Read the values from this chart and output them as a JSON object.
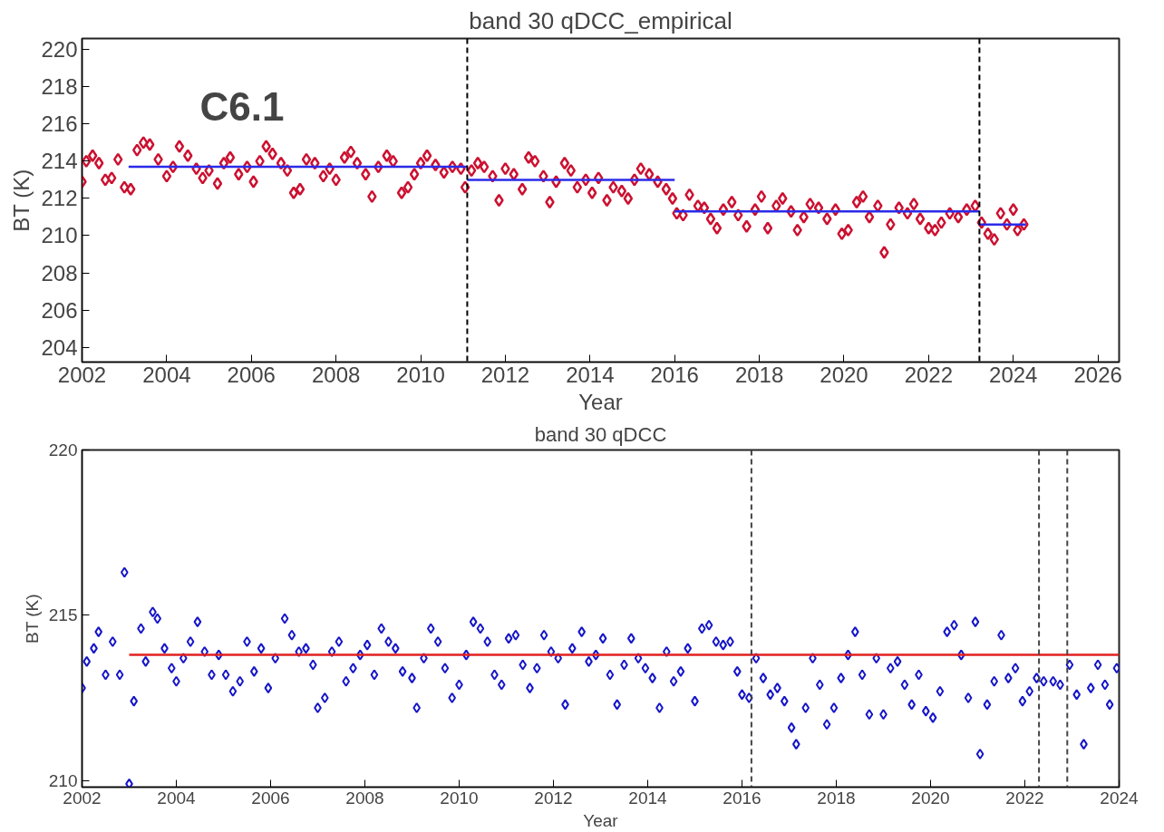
{
  "chart_data": [
    {
      "type": "scatter",
      "title": "band 30 qDCC_empirical",
      "xlabel": "Year",
      "ylabel": "BT (K)",
      "xlim": [
        2002,
        2026.5
      ],
      "ylim": [
        203.2,
        220.6
      ],
      "xticks": [
        2002,
        2004,
        2006,
        2008,
        2010,
        2012,
        2014,
        2016,
        2018,
        2020,
        2022,
        2024,
        2026
      ],
      "yticks": [
        204,
        206,
        208,
        210,
        212,
        214,
        216,
        218,
        220
      ],
      "grid": false,
      "annotations": [
        "C6.1"
      ],
      "ref_lines": [
        {
          "axis": "x",
          "value": 2011.1,
          "color": "#000000",
          "line_style": "dashed"
        },
        {
          "axis": "x",
          "value": 2023.2,
          "color": "#000000",
          "line_style": "dashed"
        }
      ],
      "series": [
        {
          "marker": "diamond",
          "color": "#cc1030",
          "x": [
            2002.0,
            2002.1,
            2002.25,
            2002.4,
            2002.55,
            2002.7,
            2002.85,
            2003.0,
            2003.15,
            2003.3,
            2003.45,
            2003.6,
            2003.8,
            2004.0,
            2004.15,
            2004.3,
            2004.5,
            2004.7,
            2004.85,
            2005.0,
            2005.2,
            2005.35,
            2005.5,
            2005.7,
            2005.9,
            2006.05,
            2006.2,
            2006.35,
            2006.5,
            2006.7,
            2006.85,
            2007.0,
            2007.15,
            2007.3,
            2007.5,
            2007.7,
            2007.85,
            2008.0,
            2008.2,
            2008.35,
            2008.5,
            2008.7,
            2008.85,
            2009.0,
            2009.2,
            2009.35,
            2009.55,
            2009.7,
            2009.85,
            2010.0,
            2010.15,
            2010.35,
            2010.55,
            2010.75,
            2010.95,
            2011.05,
            2011.2,
            2011.35,
            2011.5,
            2011.7,
            2011.85,
            2012.0,
            2012.2,
            2012.4,
            2012.55,
            2012.7,
            2012.9,
            2013.05,
            2013.2,
            2013.4,
            2013.55,
            2013.7,
            2013.9,
            2014.05,
            2014.2,
            2014.4,
            2014.55,
            2014.75,
            2014.9,
            2015.05,
            2015.2,
            2015.4,
            2015.6,
            2015.8,
            2015.95,
            2016.05,
            2016.2,
            2016.35,
            2016.55,
            2016.7,
            2016.85,
            2017.0,
            2017.15,
            2017.35,
            2017.5,
            2017.7,
            2017.9,
            2018.05,
            2018.2,
            2018.4,
            2018.55,
            2018.75,
            2018.9,
            2019.05,
            2019.2,
            2019.4,
            2019.6,
            2019.8,
            2019.95,
            2020.1,
            2020.3,
            2020.45,
            2020.6,
            2020.8,
            2020.95,
            2021.1,
            2021.3,
            2021.5,
            2021.65,
            2021.8,
            2022.0,
            2022.15,
            2022.3,
            2022.5,
            2022.7,
            2022.9,
            2023.1,
            2023.25,
            2023.4,
            2023.55,
            2023.7,
            2023.85,
            2024.0,
            2024.1,
            2024.25
          ],
          "values": [
            212.9,
            214.0,
            214.3,
            213.9,
            213.0,
            213.1,
            214.1,
            212.6,
            212.5,
            214.6,
            215.0,
            214.9,
            214.1,
            213.2,
            213.7,
            214.8,
            214.3,
            213.6,
            213.1,
            213.5,
            212.8,
            213.9,
            214.2,
            213.3,
            213.7,
            212.9,
            214.0,
            214.8,
            214.4,
            213.9,
            213.5,
            212.3,
            212.5,
            214.1,
            213.9,
            213.2,
            213.6,
            213.0,
            214.2,
            214.5,
            213.9,
            213.3,
            212.1,
            213.7,
            214.3,
            214.0,
            212.3,
            212.6,
            213.3,
            213.9,
            214.3,
            213.8,
            213.4,
            213.7,
            213.6,
            212.6,
            213.5,
            213.9,
            213.7,
            213.2,
            211.9,
            213.6,
            213.3,
            212.5,
            214.2,
            214.0,
            213.2,
            211.8,
            212.9,
            213.9,
            213.5,
            212.6,
            213.0,
            212.3,
            213.1,
            211.9,
            212.6,
            212.4,
            212.0,
            213.0,
            213.6,
            213.3,
            212.9,
            212.5,
            212.0,
            211.2,
            211.1,
            212.2,
            211.6,
            211.5,
            210.9,
            210.4,
            211.4,
            211.8,
            211.1,
            210.5,
            211.4,
            212.1,
            210.4,
            211.6,
            212.0,
            211.3,
            210.3,
            211.0,
            211.7,
            211.5,
            210.9,
            211.4,
            210.1,
            210.3,
            211.8,
            212.1,
            211.0,
            211.6,
            209.1,
            210.6,
            211.5,
            211.2,
            211.7,
            210.9,
            210.4,
            210.3,
            210.7,
            211.2,
            211.0,
            211.4,
            211.6,
            210.7,
            210.1,
            209.8,
            211.2,
            210.6,
            211.4,
            210.3,
            210.6
          ]
        },
        {
          "type": "line",
          "marker": "none",
          "color": "#2a2ae8",
          "x": [
            2003.1,
            2011.1
          ],
          "values": [
            213.7,
            213.7
          ]
        },
        {
          "type": "line",
          "marker": "none",
          "color": "#2a2ae8",
          "x": [
            2011.1,
            2016.0
          ],
          "values": [
            213.0,
            213.0
          ]
        },
        {
          "type": "line",
          "marker": "none",
          "color": "#2a2ae8",
          "x": [
            2016.0,
            2023.2
          ],
          "values": [
            211.3,
            211.3
          ]
        },
        {
          "type": "line",
          "marker": "none",
          "color": "#2a2ae8",
          "x": [
            2023.2,
            2024.3
          ],
          "values": [
            210.6,
            210.6
          ]
        }
      ]
    },
    {
      "type": "scatter",
      "title": "band 30 qDCC",
      "xlabel": "Year",
      "ylabel": "BT (K)",
      "xlim": [
        2002,
        2024
      ],
      "ylim": [
        209.8,
        220
      ],
      "xticks": [
        2002,
        2004,
        2006,
        2008,
        2010,
        2012,
        2014,
        2016,
        2018,
        2020,
        2022,
        2024
      ],
      "yticks": [
        210,
        215,
        220
      ],
      "grid": false,
      "ref_lines": [
        {
          "axis": "x",
          "value": 2016.2,
          "color": "#444444",
          "line_style": "dashed"
        },
        {
          "axis": "x",
          "value": 2022.3,
          "color": "#444444",
          "line_style": "dashed"
        },
        {
          "axis": "x",
          "value": 2022.9,
          "color": "#444444",
          "line_style": "dashed"
        }
      ],
      "series": [
        {
          "marker": "diamond",
          "color": "#1515c8",
          "x": [
            2002.0,
            2002.1,
            2002.25,
            2002.35,
            2002.5,
            2002.65,
            2002.8,
            2002.9,
            2003.0,
            2003.1,
            2003.25,
            2003.35,
            2003.5,
            2003.6,
            2003.75,
            2003.9,
            2004.0,
            2004.15,
            2004.3,
            2004.45,
            2004.6,
            2004.75,
            2004.9,
            2005.05,
            2005.2,
            2005.35,
            2005.5,
            2005.65,
            2005.8,
            2005.95,
            2006.1,
            2006.3,
            2006.45,
            2006.6,
            2006.75,
            2006.9,
            2007.0,
            2007.15,
            2007.3,
            2007.45,
            2007.6,
            2007.75,
            2007.9,
            2008.05,
            2008.2,
            2008.35,
            2008.5,
            2008.65,
            2008.8,
            2009.0,
            2009.1,
            2009.25,
            2009.4,
            2009.55,
            2009.7,
            2009.85,
            2010.0,
            2010.15,
            2010.3,
            2010.45,
            2010.6,
            2010.75,
            2010.9,
            2011.05,
            2011.2,
            2011.35,
            2011.5,
            2011.65,
            2011.8,
            2011.95,
            2012.1,
            2012.25,
            2012.4,
            2012.6,
            2012.75,
            2012.9,
            2013.05,
            2013.2,
            2013.35,
            2013.5,
            2013.65,
            2013.8,
            2013.95,
            2014.1,
            2014.25,
            2014.4,
            2014.55,
            2014.7,
            2014.85,
            2015.0,
            2015.15,
            2015.3,
            2015.45,
            2015.6,
            2015.75,
            2015.9,
            2016.0,
            2016.15,
            2016.3,
            2016.45,
            2016.6,
            2016.75,
            2016.9,
            2017.05,
            2017.15,
            2017.35,
            2017.5,
            2017.65,
            2017.8,
            2017.95,
            2018.1,
            2018.25,
            2018.4,
            2018.55,
            2018.7,
            2018.85,
            2019.0,
            2019.15,
            2019.3,
            2019.45,
            2019.6,
            2019.75,
            2019.9,
            2020.05,
            2020.2,
            2020.35,
            2020.5,
            2020.65,
            2020.8,
            2020.95,
            2021.05,
            2021.2,
            2021.35,
            2021.5,
            2021.65,
            2021.8,
            2021.95,
            2022.1,
            2022.25,
            2022.4,
            2022.6,
            2022.75,
            2022.95,
            2023.1,
            2023.25,
            2023.4,
            2023.55,
            2023.7,
            2023.8,
            2023.95
          ],
          "values": [
            212.8,
            213.6,
            214.0,
            214.5,
            213.2,
            214.2,
            213.2,
            216.3,
            209.9,
            212.4,
            214.6,
            213.6,
            215.1,
            214.9,
            214.0,
            213.4,
            213.0,
            213.7,
            214.2,
            214.8,
            213.9,
            213.2,
            213.8,
            213.2,
            212.7,
            213.0,
            214.2,
            213.3,
            214.0,
            212.8,
            213.7,
            214.9,
            214.4,
            213.9,
            214.0,
            213.5,
            212.2,
            212.5,
            213.9,
            214.2,
            213.0,
            213.4,
            213.8,
            214.1,
            213.2,
            214.6,
            214.2,
            214.0,
            213.3,
            213.1,
            212.2,
            213.7,
            214.6,
            214.2,
            213.4,
            212.5,
            212.9,
            213.8,
            214.8,
            214.6,
            214.2,
            213.2,
            212.9,
            214.3,
            214.4,
            213.5,
            212.8,
            213.4,
            214.4,
            213.9,
            213.7,
            212.3,
            214.0,
            214.5,
            213.6,
            213.8,
            214.3,
            213.2,
            212.3,
            213.5,
            214.3,
            213.7,
            213.4,
            213.1,
            212.2,
            213.9,
            213.0,
            213.3,
            214.0,
            212.4,
            214.6,
            214.7,
            214.2,
            214.1,
            214.2,
            213.3,
            212.6,
            212.5,
            213.7,
            213.1,
            212.6,
            212.8,
            212.4,
            211.6,
            211.1,
            212.2,
            213.7,
            212.9,
            211.7,
            212.2,
            213.1,
            213.8,
            214.5,
            213.2,
            212.0,
            213.7,
            212.0,
            213.4,
            213.6,
            212.9,
            212.3,
            213.2,
            212.1,
            211.9,
            212.7,
            214.5,
            214.7,
            213.8,
            212.5,
            214.8,
            210.8,
            212.3,
            213.0,
            214.4,
            213.1,
            213.4,
            212.4,
            212.7,
            213.1,
            213.0,
            213.0,
            212.9,
            213.5,
            212.6,
            211.1,
            212.8,
            213.5,
            212.9,
            212.3,
            213.4
          ]
        },
        {
          "type": "line",
          "marker": "none",
          "color": "#e02020",
          "x": [
            2003.0,
            2024.0
          ],
          "values": [
            213.8,
            213.8
          ]
        }
      ]
    }
  ]
}
